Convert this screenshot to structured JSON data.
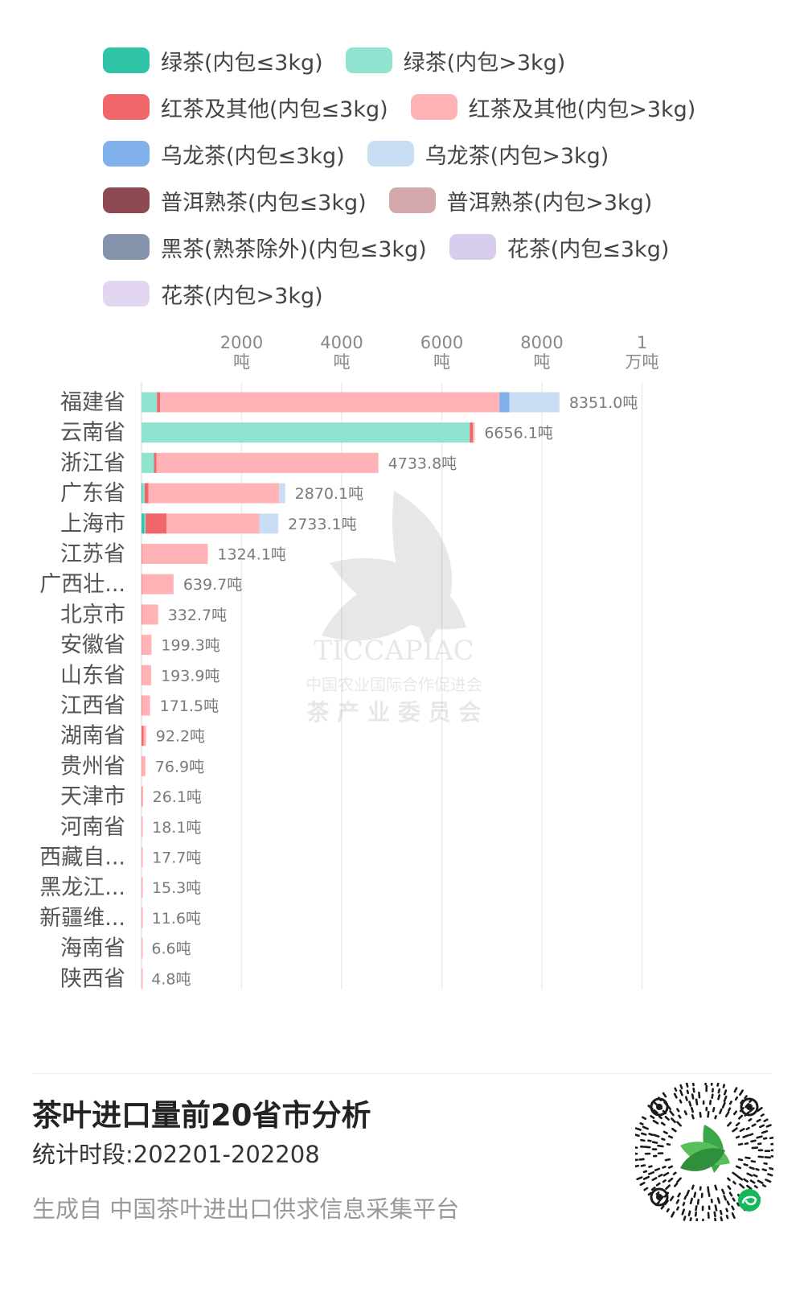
{
  "legend": [
    {
      "label": "绿茶(内包≤3kg)",
      "color": "#2ec4a5"
    },
    {
      "label": "绿茶(内包>3kg)",
      "color": "#8fe3cf"
    },
    {
      "label": "红茶及其他(内包≤3kg)",
      "color": "#f0676a"
    },
    {
      "label": "红茶及其他(内包>3kg)",
      "color": "#ffb3b6"
    },
    {
      "label": "乌龙茶(内包≤3kg)",
      "color": "#7fb0ea"
    },
    {
      "label": "乌龙茶(内包>3kg)",
      "color": "#c9ddf5"
    },
    {
      "label": "普洱熟茶(内包≤3kg)",
      "color": "#8e4a52"
    },
    {
      "label": "普洱熟茶(内包>3kg)",
      "color": "#d2a8ad"
    },
    {
      "label": "黑茶(熟茶除外)(内包≤3kg)",
      "color": "#8593ad"
    },
    {
      "label": "花茶(内包≤3kg)",
      "color": "#d8cdef"
    },
    {
      "label": "花茶(内包>3kg)",
      "color": "#e2d6f1"
    }
  ],
  "chart_data": {
    "type": "bar",
    "orientation": "horizontal",
    "stacked": true,
    "unit": "吨",
    "xlim": [
      0,
      10000
    ],
    "ticks": [
      {
        "value": 2000,
        "line1": "2000",
        "line2": "吨"
      },
      {
        "value": 4000,
        "line1": "4000",
        "line2": "吨"
      },
      {
        "value": 6000,
        "line1": "6000",
        "line2": "吨"
      },
      {
        "value": 8000,
        "line1": "8000",
        "line2": "吨"
      },
      {
        "value": 10000,
        "line1": "1",
        "line2": "万吨"
      }
    ],
    "grid": true,
    "categories": [
      "福建省",
      "云南省",
      "浙江省",
      "广东省",
      "上海市",
      "江苏省",
      "广西壮...",
      "北京市",
      "安徽省",
      "山东省",
      "江西省",
      "湖南省",
      "贵州省",
      "天津市",
      "河南省",
      "西藏自...",
      "黑龙江...",
      "新疆维...",
      "海南省",
      "陕西省"
    ],
    "totals": [
      8351.0,
      6656.1,
      4733.8,
      2870.1,
      2733.1,
      1324.1,
      639.7,
      332.7,
      199.3,
      193.9,
      171.5,
      92.2,
      76.9,
      26.1,
      18.1,
      17.7,
      15.3,
      11.6,
      6.6,
      4.8
    ],
    "total_labels": [
      "8351.0吨",
      "6656.1吨",
      "4733.8吨",
      "2870.1吨",
      "2733.1吨",
      "1324.1吨",
      "639.7吨",
      "332.7吨",
      "199.3吨",
      "193.9吨",
      "171.5吨",
      "92.2吨",
      "76.9吨",
      "26.1吨",
      "18.1吨",
      "17.7吨",
      "15.3吨",
      "11.6吨",
      "6.6吨",
      "4.8吨"
    ],
    "series": [
      {
        "name": "绿茶(内包≤3kg)",
        "values": [
          0,
          0,
          0,
          20,
          60,
          0,
          0,
          0,
          0,
          0,
          0,
          0,
          0,
          0,
          0,
          0,
          0,
          0,
          0,
          0
        ]
      },
      {
        "name": "绿茶(内包>3kg)",
        "values": [
          310,
          6560,
          250,
          40,
          20,
          0,
          0,
          0,
          0,
          0,
          0,
          0,
          0,
          0,
          0,
          0,
          0,
          0,
          0,
          0
        ]
      },
      {
        "name": "红茶及其他(内包≤3kg)",
        "values": [
          60,
          60,
          50,
          80,
          420,
          10,
          10,
          10,
          5,
          5,
          10,
          40,
          5,
          10,
          3,
          3,
          3,
          3,
          1,
          1
        ]
      },
      {
        "name": "红茶及其他(内包>3kg)",
        "values": [
          6781,
          36.1,
          4433.8,
          2610.1,
          1853.1,
          1314.1,
          629.7,
          322.7,
          194.3,
          188.9,
          161.5,
          52.2,
          71.9,
          16.1,
          15.1,
          14.7,
          12.3,
          8.6,
          5.6,
          3.8
        ]
      },
      {
        "name": "乌龙茶(内包≤3kg)",
        "values": [
          200,
          0,
          0,
          0,
          0,
          0,
          0,
          0,
          0,
          0,
          0,
          0,
          0,
          0,
          0,
          0,
          0,
          0,
          0,
          0
        ]
      },
      {
        "name": "乌龙茶(内包>3kg)",
        "values": [
          1000,
          0,
          0,
          120,
          380,
          0,
          0,
          0,
          0,
          0,
          0,
          0,
          0,
          0,
          0,
          0,
          0,
          0,
          0,
          0
        ]
      }
    ]
  },
  "footer": {
    "title": "茶叶进口量前20省市分析",
    "period": "统计时段:202201-202208",
    "source": "生成自 中国茶叶进出口供求信息采集平台"
  },
  "watermark": {
    "line1": "TICCAPIAC",
    "line2": "中国农业国际合作促进会",
    "line3": "茶 产 业 委 员 会"
  }
}
